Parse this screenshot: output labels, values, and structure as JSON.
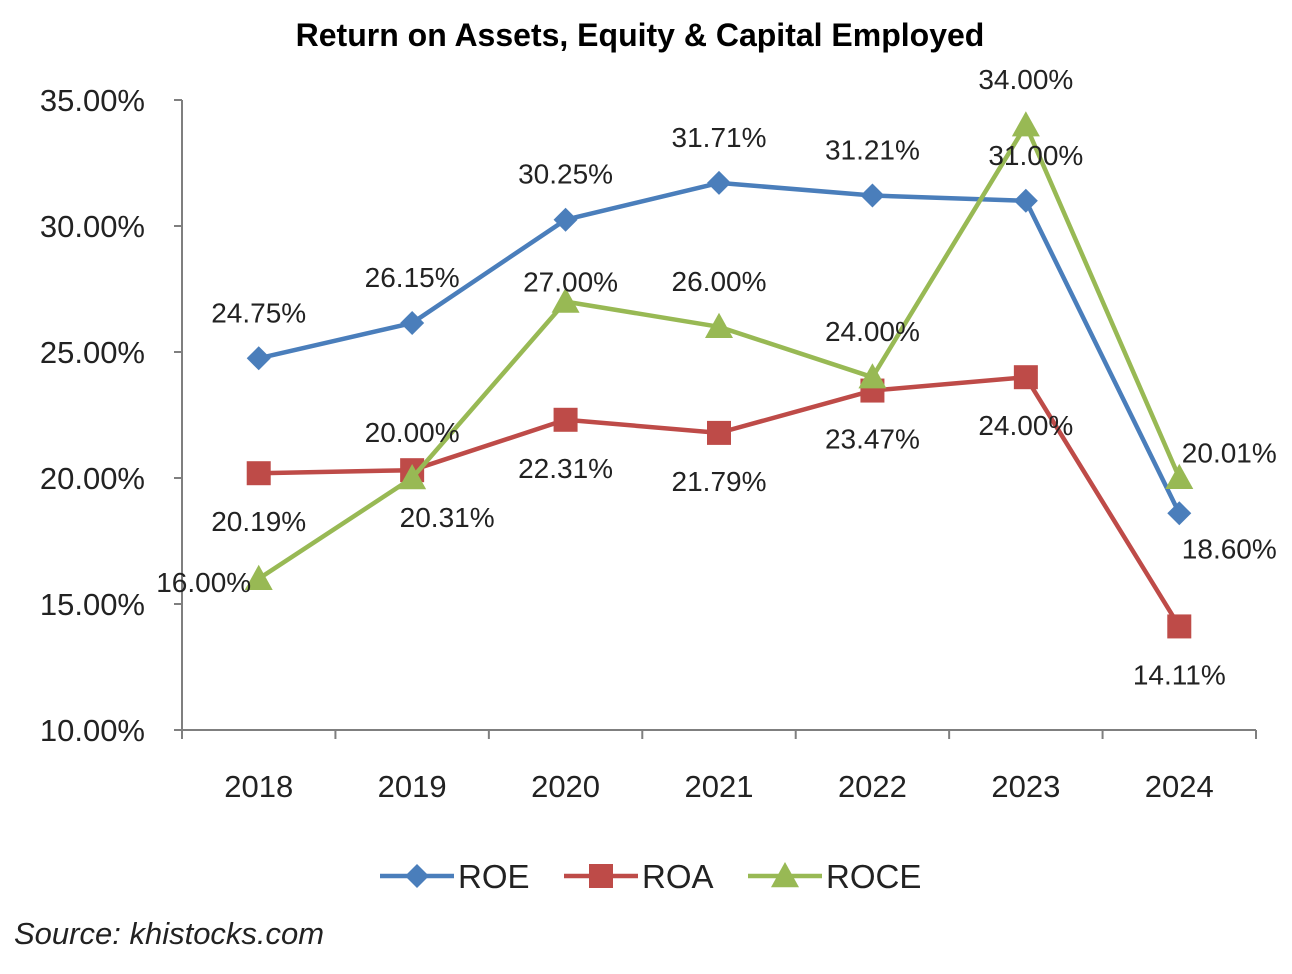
{
  "source_text": "Source: khistocks.com",
  "chart_data": {
    "type": "line",
    "title": "Return on Assets, Equity & Capital Employed",
    "xlabel": "",
    "ylabel": "",
    "categories": [
      "2018",
      "2019",
      "2020",
      "2021",
      "2022",
      "2023",
      "2024"
    ],
    "ylim": [
      10,
      35
    ],
    "yticks": [
      "10.00%",
      "15.00%",
      "20.00%",
      "25.00%",
      "30.00%",
      "35.00%"
    ],
    "ytick_values": [
      10,
      15,
      20,
      25,
      30,
      35
    ],
    "grid": false,
    "legend": "bottom",
    "series": [
      {
        "name": "ROE",
        "color": "#4A7EBB",
        "marker": "diamond",
        "values": [
          24.75,
          26.15,
          30.25,
          31.71,
          31.21,
          31.0,
          18.6
        ],
        "labels": [
          "24.75%",
          "26.15%",
          "30.25%",
          "31.71%",
          "31.21%",
          "31.00%",
          "18.60%"
        ]
      },
      {
        "name": "ROA",
        "color": "#BE4B48",
        "marker": "square",
        "values": [
          20.19,
          20.31,
          22.31,
          21.79,
          23.47,
          24.0,
          14.11
        ],
        "labels": [
          "20.19%",
          "20.31%",
          "22.31%",
          "21.79%",
          "23.47%",
          "24.00%",
          "14.11%"
        ]
      },
      {
        "name": "ROCE",
        "color": "#98B954",
        "marker": "triangle",
        "values": [
          16.0,
          20.0,
          27.0,
          26.0,
          24.0,
          34.0,
          20.01
        ],
        "labels": [
          "16.00%",
          "20.00%",
          "27.00%",
          "26.00%",
          "24.00%",
          "34.00%",
          "20.01%"
        ]
      }
    ]
  }
}
